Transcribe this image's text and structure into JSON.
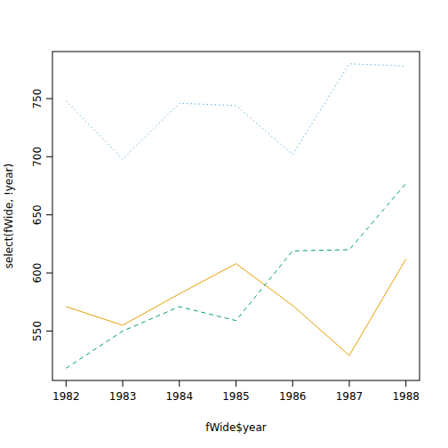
{
  "chart_data": {
    "type": "line",
    "x_label": "fWide$year",
    "y_label": "select(fWide, !year)",
    "x": [
      1982,
      1983,
      1984,
      1985,
      1986,
      1987,
      1988
    ],
    "series": [
      {
        "color": "#E69F00",
        "line_style": "solid",
        "values": [
          571,
          555,
          582,
          608,
          572,
          529,
          612
        ]
      },
      {
        "color": "#009E73",
        "line_style": "dashed",
        "values": [
          518,
          550,
          571,
          559,
          619,
          620,
          677
        ]
      },
      {
        "color": "#56B4E9",
        "line_style": "dotted",
        "values": [
          748,
          698,
          746,
          744,
          702,
          780,
          778
        ]
      }
    ],
    "xlim": [
      1981.76,
      1988.24
    ],
    "ylim": [
      507.5,
      790.5
    ],
    "xticks": [
      1982,
      1983,
      1984,
      1985,
      1986,
      1987,
      1988
    ],
    "yticks": [
      550,
      600,
      650,
      700,
      750
    ],
    "grid": false
  }
}
